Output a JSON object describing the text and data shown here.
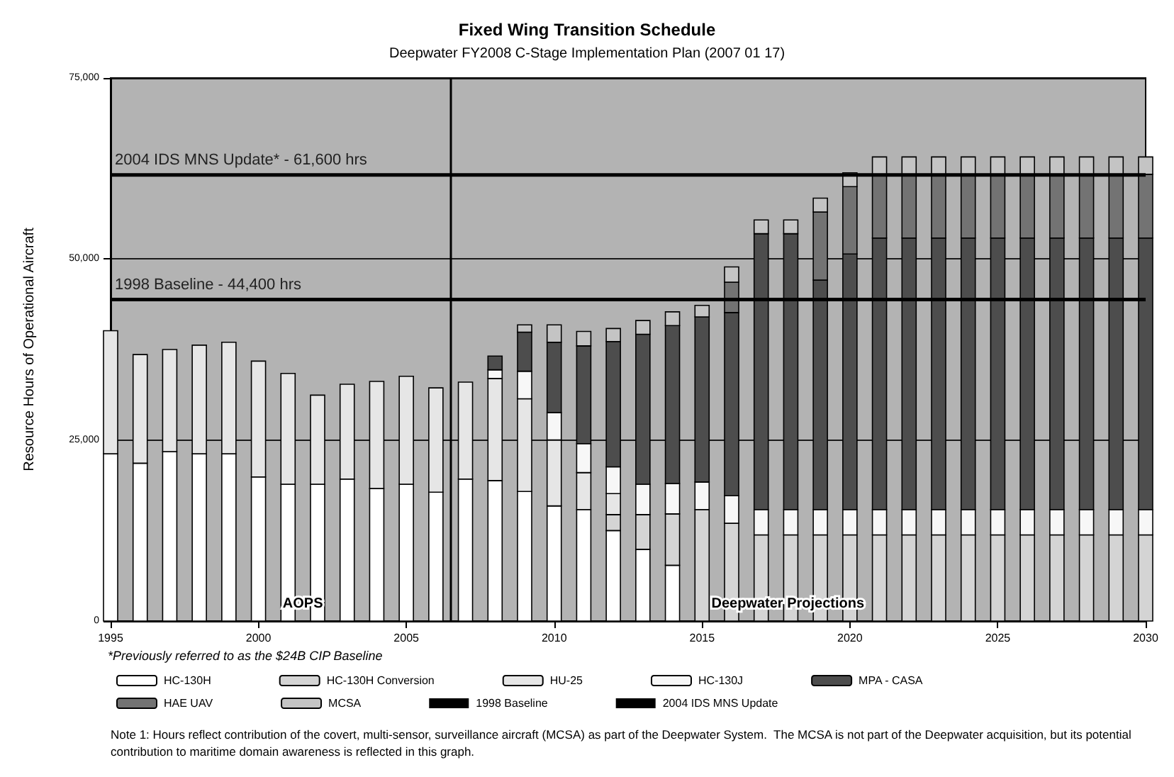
{
  "chart_data": {
    "type": "bar",
    "stacked": true,
    "title": "Fixed Wing Transition Schedule",
    "subtitle": "Deepwater FY2008 C-Stage Implementation Plan (2007 01 17)",
    "ylabel": "Resource Hours of Operational Aircraft",
    "x": [
      1995,
      1996,
      1997,
      1998,
      1999,
      2000,
      2001,
      2002,
      2003,
      2004,
      2005,
      2006,
      2007,
      2008,
      2009,
      2010,
      2011,
      2012,
      2013,
      2014,
      2015,
      2016,
      2017,
      2018,
      2019,
      2020,
      2021,
      2022,
      2023,
      2024,
      2025,
      2026,
      2027,
      2028,
      2029,
      2030
    ],
    "xlim": [
      1995,
      2030
    ],
    "xticks": [
      1995,
      2000,
      2005,
      2010,
      2015,
      2020,
      2025,
      2030
    ],
    "ylim": [
      0,
      75000
    ],
    "yticks": [
      {
        "value": 0,
        "label": "0"
      },
      {
        "value": 25000,
        "label": "25,000"
      },
      {
        "value": 50000,
        "label": "50,000"
      },
      {
        "value": 75000,
        "label": "75,000"
      }
    ],
    "grid": "y",
    "legend": "bottom",
    "series": [
      {
        "name": "HC-130H",
        "color": "#ffffff",
        "values": [
          23100,
          21800,
          23400,
          23100,
          23100,
          19900,
          18900,
          18900,
          19600,
          18300,
          18900,
          17800,
          19600,
          19400,
          17900,
          15900,
          15400,
          12500,
          9900,
          7700,
          null,
          null,
          null,
          null,
          null,
          null,
          null,
          null,
          null,
          null,
          null,
          null,
          null,
          null,
          null,
          null
        ]
      },
      {
        "name": "HC-130H Conversion",
        "color": "#d4d4d4",
        "values": [
          null,
          null,
          null,
          null,
          null,
          null,
          null,
          null,
          null,
          null,
          null,
          null,
          null,
          null,
          null,
          null,
          null,
          2200,
          4800,
          7100,
          15400,
          13500,
          11900,
          11900,
          11900,
          11900,
          11900,
          11900,
          11900,
          11900,
          11900,
          11900,
          11900,
          11900,
          11900,
          11900
        ]
      },
      {
        "name": "HU-25",
        "color": "#e6e6e6",
        "values": [
          17000,
          15000,
          14100,
          15000,
          15400,
          16000,
          15300,
          12300,
          13100,
          14800,
          14900,
          14400,
          13400,
          14100,
          12800,
          9100,
          5100,
          2900,
          null,
          null,
          null,
          null,
          null,
          null,
          null,
          null,
          null,
          null,
          null,
          null,
          null,
          null,
          null,
          null,
          null,
          null
        ]
      },
      {
        "name": "HC-130J",
        "color": "#f7f7f7",
        "values": [
          null,
          null,
          null,
          null,
          null,
          null,
          null,
          null,
          null,
          null,
          null,
          null,
          null,
          1200,
          3800,
          3800,
          4000,
          3700,
          4200,
          4200,
          3800,
          3800,
          3500,
          3500,
          3500,
          3500,
          3500,
          3500,
          3500,
          3500,
          3500,
          3500,
          3500,
          3500,
          3500,
          3500
        ]
      },
      {
        "name": "MPA - CASA",
        "color": "#4d4d4d",
        "values": [
          null,
          null,
          null,
          null,
          null,
          null,
          null,
          null,
          null,
          null,
          null,
          null,
          null,
          1900,
          5400,
          9700,
          13500,
          17300,
          20700,
          21800,
          22800,
          25300,
          38100,
          38100,
          31700,
          35300,
          37500,
          37500,
          37500,
          37500,
          37500,
          37500,
          37500,
          37500,
          37500,
          37500
        ]
      },
      {
        "name": "HAE UAV",
        "color": "#737373",
        "values": [
          null,
          null,
          null,
          null,
          null,
          null,
          null,
          null,
          null,
          null,
          null,
          null,
          null,
          null,
          null,
          null,
          null,
          null,
          null,
          null,
          null,
          4200,
          null,
          null,
          9400,
          9300,
          8800,
          8800,
          8800,
          8800,
          8800,
          8800,
          8800,
          8800,
          8800,
          8800
        ]
      },
      {
        "name": "MCSA",
        "color": "#c4c4c4",
        "values": [
          null,
          null,
          null,
          null,
          null,
          null,
          null,
          null,
          null,
          null,
          null,
          null,
          null,
          null,
          1000,
          2400,
          2000,
          1800,
          1900,
          1900,
          1600,
          2100,
          1900,
          1900,
          1900,
          1900,
          2400,
          2400,
          2400,
          2400,
          2400,
          2400,
          2400,
          2400,
          2400,
          2400
        ]
      },
      {
        "name": "1998 Baseline",
        "type": "line",
        "color": "#000000",
        "values": [
          44400,
          44400,
          44400,
          44400,
          44400,
          44400,
          44400,
          44400,
          44400,
          44400,
          44400,
          44400,
          44400,
          44400,
          44400,
          44400,
          44400,
          44400,
          44400,
          44400,
          44400,
          44400,
          44400,
          44400,
          44400,
          44400,
          44400,
          44400,
          44400,
          44400,
          44400,
          44400,
          44400,
          44400,
          44400,
          44400
        ]
      },
      {
        "name": "2004 IDS MNS Update",
        "type": "line",
        "color": "#000000",
        "values": [
          61600,
          61600,
          61600,
          61600,
          61600,
          61600,
          61600,
          61600,
          61600,
          61600,
          61600,
          61600,
          61600,
          61600,
          61600,
          61600,
          61600,
          61600,
          61600,
          61600,
          61600,
          61600,
          61600,
          61600,
          61600,
          61600,
          61600,
          61600,
          61600,
          61600,
          61600,
          61600,
          61600,
          61600,
          61600,
          61600
        ]
      }
    ],
    "ref_lines": [
      {
        "axis": "x",
        "value": 2006.5,
        "color": "#000000"
      }
    ],
    "annotations": [
      {
        "text": "1998 Baseline - 44,400 hrs",
        "x": 1995,
        "y": 44400
      },
      {
        "text": "2004 IDS MNS Update* - 61,600 hrs",
        "x": 1995,
        "y": 61600
      },
      "AOPS",
      "Deepwater Projections",
      "*Previously referred to as the $24B CIP Baseline",
      "Note 1: Hours reflect contribution of the covert, multi-sensor, surveillance aircraft (MCSA) as part of the Deepwater System.  The MCSA is not part of the Deepwater acquisition, but its potential contribution to maritime domain awareness is reflected in this graph."
    ]
  }
}
